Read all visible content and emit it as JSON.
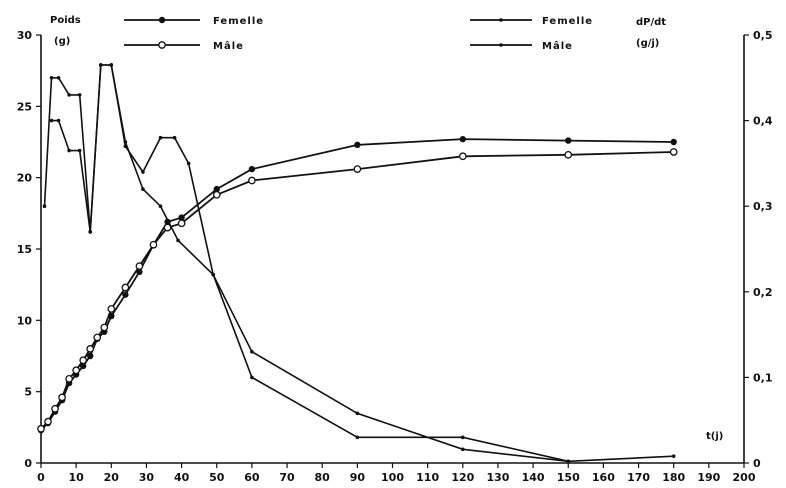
{
  "chart_data": {
    "type": "line",
    "title": "",
    "xlabel": "t(j)",
    "xlim": [
      0,
      200
    ],
    "x_ticks": [
      0,
      10,
      20,
      30,
      40,
      50,
      60,
      70,
      80,
      90,
      100,
      110,
      120,
      130,
      140,
      150,
      160,
      170,
      180,
      190,
      200
    ],
    "y_left": {
      "label_line1": "Poids",
      "label_line2": "(g)",
      "lim": [
        0,
        30
      ],
      "ticks": [
        0,
        5,
        10,
        15,
        20,
        25,
        30
      ]
    },
    "y_right": {
      "label_line1": "dP/dt",
      "label_line2": "(g/j)",
      "lim": [
        0,
        0.5
      ],
      "ticks": [
        "0",
        "0,1",
        "0,2",
        "0,3",
        "0,4",
        "0,5"
      ],
      "tick_values": [
        0,
        0.1,
        0.2,
        0.3,
        0.4,
        0.5
      ]
    },
    "grid": false,
    "legend_left": [
      {
        "name": "Femelle",
        "marker": "filled"
      },
      {
        "name": "Mâle",
        "marker": "open"
      }
    ],
    "legend_right": [
      {
        "name": "Femelle",
        "marker": "small-dot"
      },
      {
        "name": "Mâle",
        "marker": "small-dot"
      }
    ],
    "series": [
      {
        "name": "Femelle",
        "axis": "left",
        "marker": "filled",
        "x": [
          0,
          2,
          4,
          6,
          8,
          10,
          12,
          14,
          16,
          18,
          20,
          24,
          28,
          32,
          36,
          40,
          50,
          60,
          90,
          120,
          150,
          180
        ],
        "y": [
          2.3,
          2.8,
          3.6,
          4.4,
          5.6,
          6.2,
          6.8,
          7.5,
          8.7,
          9.2,
          10.3,
          11.8,
          13.4,
          15.3,
          16.9,
          17.2,
          19.2,
          20.6,
          22.3,
          22.7,
          22.6,
          22.5
        ]
      },
      {
        "name": "Mâle",
        "axis": "left",
        "marker": "open",
        "x": [
          0,
          2,
          4,
          6,
          8,
          10,
          12,
          14,
          16,
          18,
          20,
          24,
          28,
          32,
          36,
          40,
          50,
          60,
          90,
          120,
          150,
          180
        ],
        "y": [
          2.4,
          2.9,
          3.8,
          4.6,
          5.9,
          6.5,
          7.2,
          8.0,
          8.8,
          9.5,
          10.8,
          12.3,
          13.8,
          15.3,
          16.5,
          16.8,
          18.8,
          19.8,
          20.6,
          21.5,
          21.6,
          21.8
        ]
      },
      {
        "name": "Femelle",
        "axis": "right",
        "marker": "small-dot",
        "x": [
          1,
          3,
          5,
          8,
          11,
          14,
          17,
          20,
          24,
          29,
          34,
          38,
          42,
          49,
          60,
          90,
          120,
          150,
          180
        ],
        "y": [
          0.3,
          0.45,
          0.45,
          0.43,
          0.43,
          0.27,
          0.465,
          0.465,
          0.37,
          0.34,
          0.38,
          0.38,
          0.35,
          0.22,
          0.1,
          0.03,
          0.03,
          0.002,
          0.008
        ]
      },
      {
        "name": "Mâle",
        "axis": "right",
        "marker": "small-dot",
        "x": [
          3,
          5,
          8,
          11,
          14,
          17,
          20,
          24,
          29,
          34,
          39,
          49,
          60,
          90,
          120,
          150
        ],
        "y": [
          0.4,
          0.4,
          0.365,
          0.365,
          0.27,
          0.465,
          0.465,
          0.375,
          0.32,
          0.3,
          0.26,
          0.22,
          0.13,
          0.058,
          0.016,
          0.002
        ]
      }
    ]
  }
}
